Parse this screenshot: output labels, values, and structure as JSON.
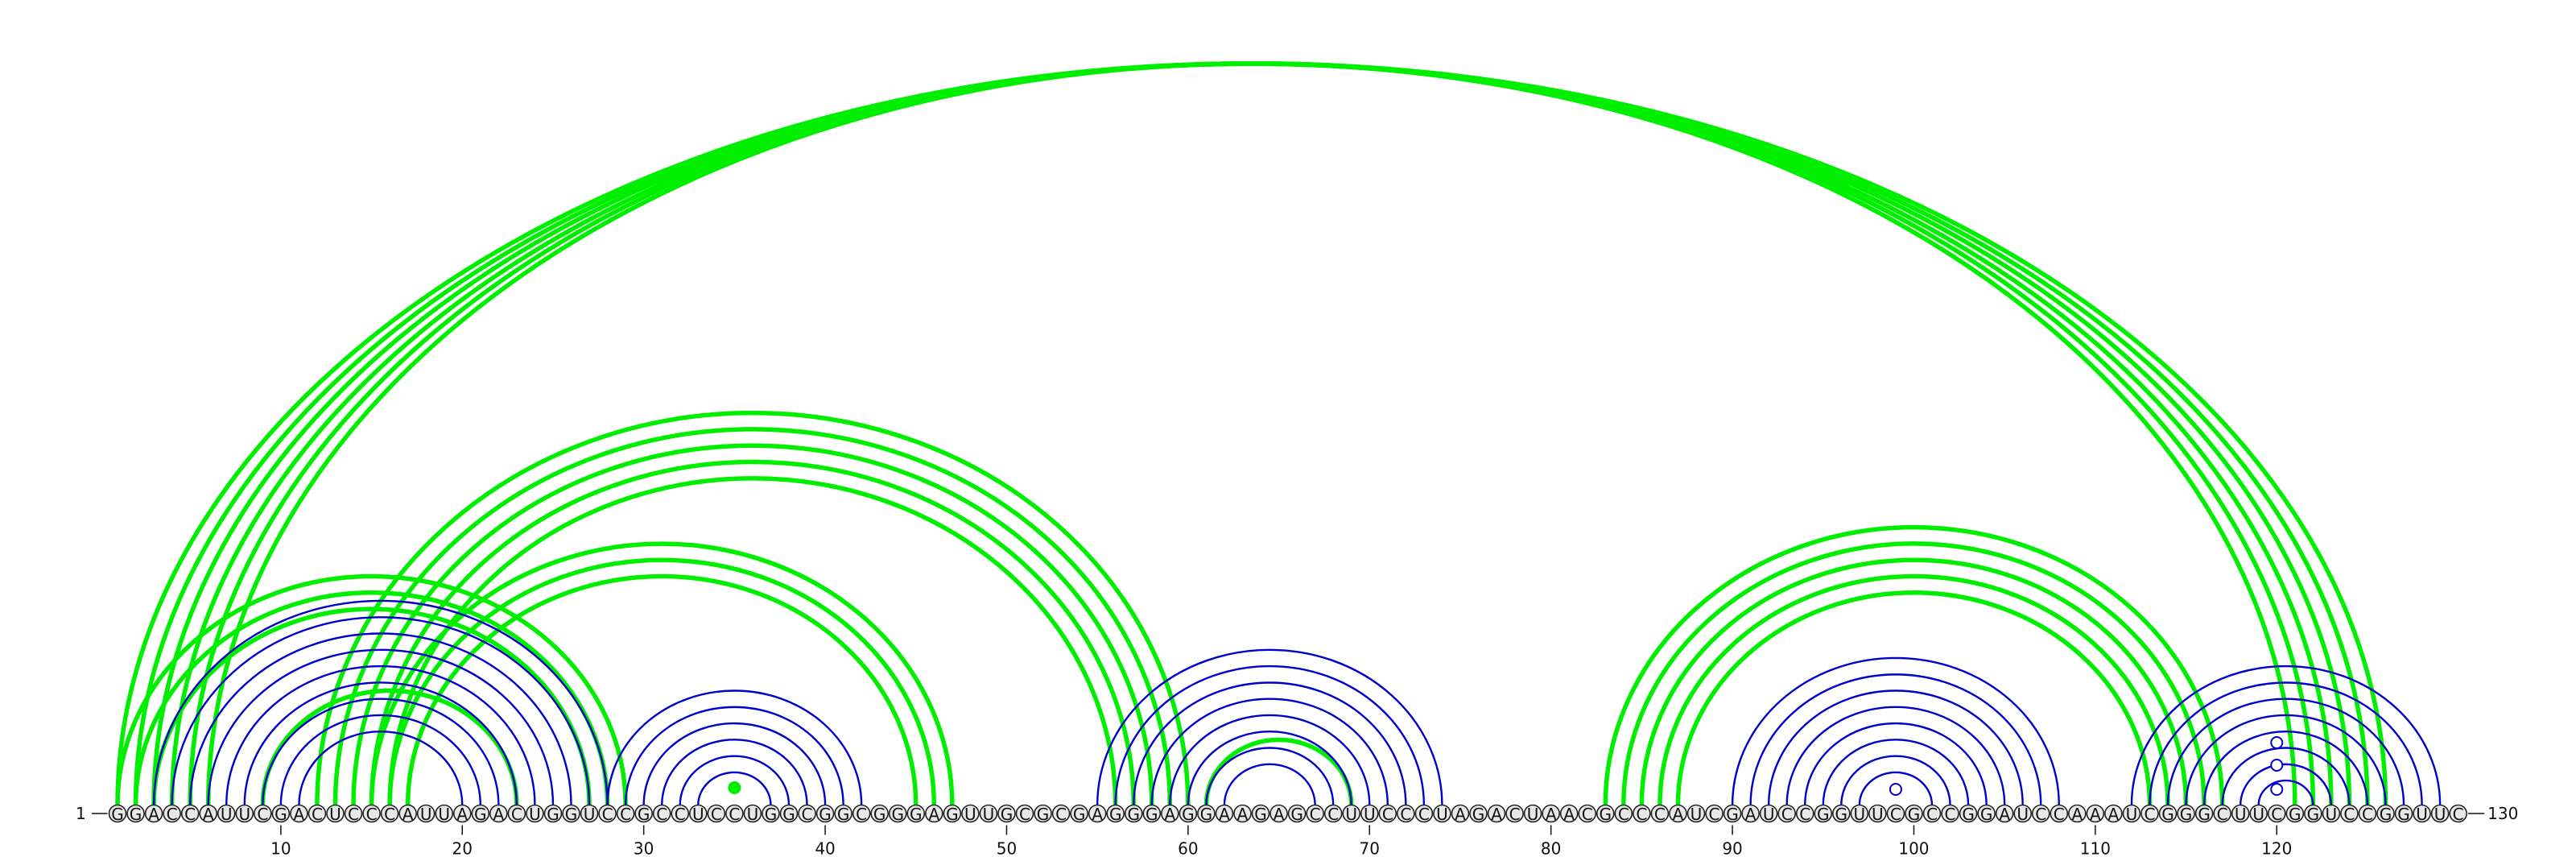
{
  "sequence": "GGACCAUUCGACUCCCAUUAGACUGGUCCGCCUCCUGGCGGCGGGAGUUGCGCGAGGGAGGAAGAGCCUUCCCUAGACUAACGCCCAUCGAUCCGGUUCGCCGGAUCCAAAUCGGGCUUCGGUCCGGUUC",
  "start_label": "1",
  "end_label": "130",
  "ticks": [
    10,
    20,
    30,
    40,
    50,
    60,
    70,
    80,
    90,
    100,
    110,
    120
  ],
  "colors": {
    "structure_a": "#0000cc",
    "structure_b": "#00ee00",
    "nucleotide_fill": "#e8e8e8",
    "nucleotide_stroke": "#222222"
  },
  "arcs_below_structure": [
    [
      3,
      28
    ],
    [
      4,
      27
    ],
    [
      5,
      26
    ],
    [
      6,
      25
    ],
    [
      7,
      24
    ],
    [
      8,
      23
    ],
    [
      9,
      22
    ],
    [
      10,
      21
    ],
    [
      11,
      20
    ],
    [
      28,
      42
    ],
    [
      29,
      41
    ],
    [
      30,
      40
    ],
    [
      31,
      39
    ],
    [
      32,
      38
    ],
    [
      33,
      37
    ],
    [
      55,
      74
    ],
    [
      56,
      73
    ],
    [
      57,
      72
    ],
    [
      58,
      71
    ],
    [
      59,
      70
    ],
    [
      60,
      69
    ],
    [
      61,
      68
    ],
    [
      62,
      67
    ],
    [
      90,
      108
    ],
    [
      91,
      107
    ],
    [
      92,
      106
    ],
    [
      93,
      105
    ],
    [
      94,
      104
    ],
    [
      95,
      103
    ],
    [
      96,
      102
    ],
    [
      97,
      101
    ],
    [
      112,
      129
    ],
    [
      113,
      128
    ],
    [
      114,
      127
    ],
    [
      115,
      126
    ],
    [
      116,
      125
    ],
    [
      117,
      124
    ],
    [
      118,
      123
    ],
    [
      119,
      122
    ]
  ],
  "arcs_green_structure": [
    [
      1,
      126
    ],
    [
      2,
      125
    ],
    [
      3,
      124
    ],
    [
      4,
      123
    ],
    [
      5,
      122
    ],
    [
      6,
      121
    ],
    [
      1,
      29
    ],
    [
      2,
      28
    ],
    [
      3,
      27
    ],
    [
      12,
      60
    ],
    [
      13,
      59
    ],
    [
      14,
      58
    ],
    [
      15,
      57
    ],
    [
      16,
      56
    ],
    [
      15,
      47
    ],
    [
      16,
      46
    ],
    [
      17,
      45
    ],
    [
      9,
      23
    ],
    [
      83,
      117
    ],
    [
      84,
      116
    ],
    [
      85,
      115
    ],
    [
      86,
      114
    ],
    [
      87,
      113
    ],
    [
      61,
      69
    ]
  ],
  "markers": [
    {
      "pos": 35,
      "color": "green",
      "filled": true,
      "arc_index_hint": "innermost"
    },
    {
      "pos": 99,
      "color": "blue",
      "filled": false
    },
    {
      "pos": 120,
      "color": "blue",
      "filled": false
    }
  ]
}
